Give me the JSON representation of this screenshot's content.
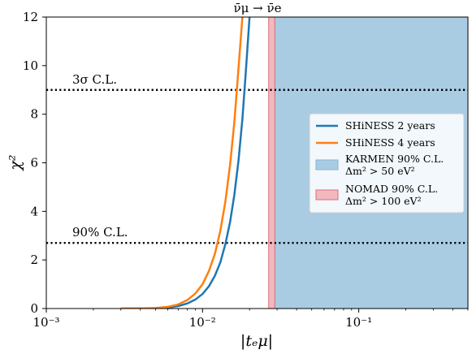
{
  "chart_data": {
    "type": "line",
    "title": "ν̄μ → ν̄e",
    "xlabel": "|tₑμ|",
    "ylabel": "χ²",
    "xscale": "log",
    "xlim": [
      0.001,
      0.5
    ],
    "ylim": [
      0,
      12
    ],
    "grid": false,
    "x_ticks": [
      {
        "value": 0.001,
        "label": "10⁻³"
      },
      {
        "value": 0.01,
        "label": "10⁻²"
      },
      {
        "value": 0.1,
        "label": "10⁻¹"
      }
    ],
    "y_ticks": [
      0,
      2,
      4,
      6,
      8,
      10,
      12
    ],
    "series": [
      {
        "name": "SHiNESS 2 years",
        "color": "#1f77b4",
        "points": [
          [
            0.003,
            0
          ],
          [
            0.004,
            0.003
          ],
          [
            0.005,
            0.01
          ],
          [
            0.006,
            0.04
          ],
          [
            0.007,
            0.1
          ],
          [
            0.008,
            0.21
          ],
          [
            0.009,
            0.37
          ],
          [
            0.01,
            0.6
          ],
          [
            0.011,
            0.92
          ],
          [
            0.012,
            1.35
          ],
          [
            0.013,
            1.9
          ],
          [
            0.014,
            2.65
          ],
          [
            0.015,
            3.55
          ],
          [
            0.016,
            4.7
          ],
          [
            0.017,
            6.1
          ],
          [
            0.018,
            7.8
          ],
          [
            0.019,
            9.9
          ],
          [
            0.02,
            12.0
          ]
        ]
      },
      {
        "name": "SHiNESS 4 years",
        "color": "#ff7f0e",
        "points": [
          [
            0.003,
            0
          ],
          [
            0.004,
            0.005
          ],
          [
            0.005,
            0.02
          ],
          [
            0.006,
            0.07
          ],
          [
            0.007,
            0.17
          ],
          [
            0.008,
            0.35
          ],
          [
            0.009,
            0.62
          ],
          [
            0.01,
            1.0
          ],
          [
            0.011,
            1.55
          ],
          [
            0.012,
            2.25
          ],
          [
            0.013,
            3.2
          ],
          [
            0.014,
            4.4
          ],
          [
            0.015,
            5.9
          ],
          [
            0.016,
            7.7
          ],
          [
            0.017,
            9.9
          ],
          [
            0.018,
            12.0
          ]
        ]
      }
    ],
    "bands": [
      {
        "name": "KARMEN 90% C.L.",
        "name_line2": "Δm² > 50 eV²",
        "x_from": 0.029,
        "x_to": 0.5,
        "color": "#a9cce3",
        "edge": "#86b5d5"
      },
      {
        "name": "NOMAD 90% C.L.",
        "name_line2": "Δm² > 100 eV²",
        "x_from": 0.0265,
        "x_to": 0.029,
        "color": "#f2b8be",
        "edge": "#d9707e"
      }
    ],
    "hlines": [
      {
        "y": 9,
        "label": "3σ C.L."
      },
      {
        "y": 2.7,
        "label": "90% C.L."
      }
    ],
    "legend_position": "right"
  }
}
